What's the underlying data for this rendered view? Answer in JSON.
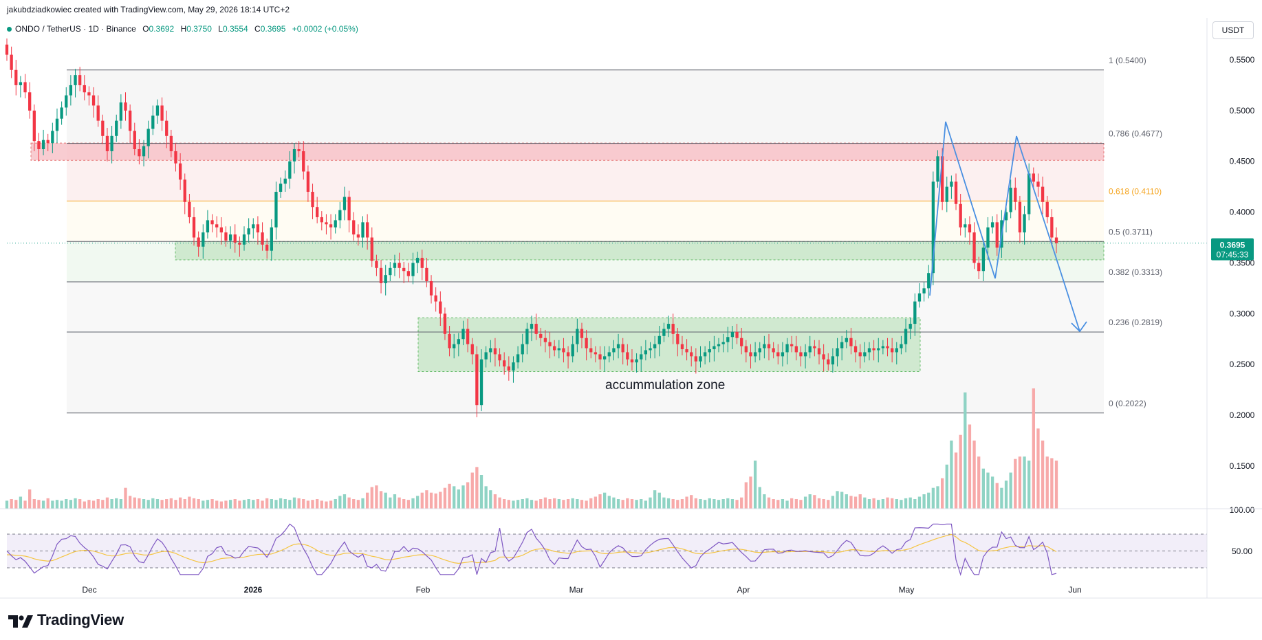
{
  "header": {
    "credit": "jakubdziadkowiec created with TradingView.com, May 29, 2026 18:14 UTC+2"
  },
  "legend": {
    "symbol": "ONDO / TetherUS · 1D · Binance",
    "open_label": "O",
    "open": "0.3692",
    "high_label": "H",
    "high": "0.3750",
    "low_label": "L",
    "low": "0.3554",
    "close_label": "C",
    "close": "0.3695",
    "change": "+0.0002 (+0.05%)"
  },
  "currency": "USDT",
  "price_tag": {
    "price": "0.3695",
    "countdown": "07:45:33"
  },
  "annotation": {
    "zone_text": "accummulation zone"
  },
  "branding": {
    "logo_text": "TradingView"
  },
  "colors": {
    "up": "#089981",
    "down": "#f23645",
    "fib_618": "#f5a623",
    "drawing": "#4a90e2",
    "resistance_zone": "#f7c3c9",
    "support_zone": "#c9e6c9",
    "rsi_line": "#7e57c2",
    "rsi_ma": "#f5c542"
  },
  "chart_data": {
    "type": "candlestick",
    "symbol": "ONDO / TetherUS",
    "interval": "1D",
    "y_axis": {
      "ticks": [
        "0.5500",
        "0.5000",
        "0.4500",
        "0.4000",
        "0.3500",
        "0.3000",
        "0.2500",
        "0.2000",
        "0.1500",
        "100.00",
        "50.00"
      ],
      "ylim": [
        0.135,
        0.58
      ]
    },
    "x_axis": {
      "ticks": [
        "Dec",
        "2026",
        "Feb",
        "Mar",
        "Apr",
        "May",
        "Jun"
      ]
    },
    "fibonacci": [
      {
        "level": "1",
        "price": "0.5400"
      },
      {
        "level": "0.786",
        "price": "0.4677"
      },
      {
        "level": "0.618",
        "price": "0.4110"
      },
      {
        "level": "0.5",
        "price": "0.3711"
      },
      {
        "level": "0.382",
        "price": "0.3313"
      },
      {
        "level": "0.236",
        "price": "0.2819"
      },
      {
        "level": "0",
        "price": "0.2022"
      }
    ],
    "zones": [
      {
        "type": "resistance",
        "from": 0.451,
        "to": 0.468
      },
      {
        "type": "support",
        "from": 0.353,
        "to": 0.371
      },
      {
        "type": "accumulation",
        "from": 0.243,
        "to": 0.296
      }
    ],
    "close_series": [
      0.555,
      0.54,
      0.525,
      0.528,
      0.518,
      0.5,
      0.47,
      0.462,
      0.471,
      0.468,
      0.48,
      0.492,
      0.503,
      0.515,
      0.525,
      0.535,
      0.525,
      0.518,
      0.515,
      0.505,
      0.49,
      0.475,
      0.46,
      0.475,
      0.49,
      0.508,
      0.5,
      0.48,
      0.462,
      0.455,
      0.465,
      0.482,
      0.495,
      0.505,
      0.49,
      0.475,
      0.46,
      0.448,
      0.432,
      0.41,
      0.395,
      0.375,
      0.366,
      0.38,
      0.392,
      0.388,
      0.385,
      0.38,
      0.372,
      0.378,
      0.37,
      0.368,
      0.378,
      0.384,
      0.388,
      0.38,
      0.368,
      0.362,
      0.385,
      0.42,
      0.428,
      0.433,
      0.45,
      0.462,
      0.46,
      0.44,
      0.42,
      0.405,
      0.395,
      0.39,
      0.388,
      0.385,
      0.392,
      0.402,
      0.415,
      0.392,
      0.378,
      0.375,
      0.39,
      0.375,
      0.352,
      0.345,
      0.33,
      0.338,
      0.345,
      0.35,
      0.345,
      0.342,
      0.337,
      0.35,
      0.355,
      0.345,
      0.332,
      0.318,
      0.312,
      0.3,
      0.28,
      0.266,
      0.27,
      0.275,
      0.285,
      0.27,
      0.26,
      0.21,
      0.255,
      0.262,
      0.266,
      0.26,
      0.254,
      0.248,
      0.244,
      0.252,
      0.26,
      0.27,
      0.285,
      0.29,
      0.28,
      0.276,
      0.272,
      0.268,
      0.264,
      0.266,
      0.262,
      0.258,
      0.27,
      0.285,
      0.276,
      0.266,
      0.262,
      0.26,
      0.255,
      0.258,
      0.262,
      0.266,
      0.27,
      0.262,
      0.255,
      0.252,
      0.255,
      0.26,
      0.264,
      0.266,
      0.27,
      0.278,
      0.285,
      0.29,
      0.28,
      0.27,
      0.265,
      0.262,
      0.258,
      0.253,
      0.258,
      0.262,
      0.265,
      0.268,
      0.27,
      0.272,
      0.277,
      0.282,
      0.276,
      0.268,
      0.262,
      0.258,
      0.262,
      0.266,
      0.27,
      0.266,
      0.262,
      0.258,
      0.262,
      0.27,
      0.268,
      0.262,
      0.258,
      0.262,
      0.268,
      0.266,
      0.26,
      0.255,
      0.25,
      0.258,
      0.266,
      0.272,
      0.276,
      0.268,
      0.262,
      0.258,
      0.262,
      0.266,
      0.264,
      0.266,
      0.268,
      0.266,
      0.262,
      0.266,
      0.27,
      0.285,
      0.29,
      0.312,
      0.32,
      0.325,
      0.34,
      0.43,
      0.455,
      0.41,
      0.425,
      0.43,
      0.408,
      0.385,
      0.388,
      0.38,
      0.35,
      0.342,
      0.365,
      0.385,
      0.39,
      0.365,
      0.392,
      0.4,
      0.424,
      0.41,
      0.38,
      0.398,
      0.438,
      0.43,
      0.425,
      0.41,
      0.395,
      0.375,
      0.3695
    ],
    "volume_series": [
      0.1,
      0.12,
      0.11,
      0.15,
      0.1,
      0.24,
      0.12,
      0.11,
      0.1,
      0.13,
      0.1,
      0.11,
      0.1,
      0.12,
      0.11,
      0.13,
      0.12,
      0.09,
      0.11,
      0.1,
      0.12,
      0.11,
      0.14,
      0.12,
      0.13,
      0.12,
      0.26,
      0.16,
      0.14,
      0.13,
      0.12,
      0.11,
      0.13,
      0.12,
      0.11,
      0.12,
      0.13,
      0.11,
      0.14,
      0.12,
      0.15,
      0.13,
      0.12,
      0.1,
      0.11,
      0.12,
      0.1,
      0.09,
      0.1,
      0.11,
      0.12,
      0.1,
      0.11,
      0.12,
      0.11,
      0.12,
      0.1,
      0.13,
      0.12,
      0.11,
      0.13,
      0.12,
      0.11,
      0.14,
      0.13,
      0.12,
      0.1,
      0.11,
      0.12,
      0.1,
      0.09,
      0.1,
      0.12,
      0.16,
      0.18,
      0.14,
      0.12,
      0.11,
      0.13,
      0.2,
      0.27,
      0.29,
      0.22,
      0.2,
      0.14,
      0.18,
      0.14,
      0.12,
      0.11,
      0.13,
      0.16,
      0.2,
      0.23,
      0.2,
      0.19,
      0.21,
      0.26,
      0.31,
      0.28,
      0.24,
      0.29,
      0.33,
      0.45,
      0.52,
      0.42,
      0.28,
      0.23,
      0.18,
      0.14,
      0.12,
      0.11,
      0.1,
      0.11,
      0.12,
      0.13,
      0.11,
      0.1,
      0.12,
      0.14,
      0.12,
      0.13,
      0.12,
      0.11,
      0.12,
      0.13,
      0.12,
      0.11,
      0.1,
      0.13,
      0.15,
      0.18,
      0.2,
      0.16,
      0.14,
      0.12,
      0.11,
      0.13,
      0.12,
      0.11,
      0.12,
      0.1,
      0.14,
      0.23,
      0.2,
      0.14,
      0.13,
      0.12,
      0.11,
      0.12,
      0.15,
      0.17,
      0.13,
      0.12,
      0.11,
      0.13,
      0.12,
      0.11,
      0.12,
      0.13,
      0.12,
      0.11,
      0.14,
      0.33,
      0.4,
      0.6,
      0.27,
      0.18,
      0.14,
      0.12,
      0.11,
      0.12,
      0.1,
      0.13,
      0.12,
      0.11,
      0.15,
      0.18,
      0.17,
      0.13,
      0.12,
      0.11,
      0.16,
      0.22,
      0.21,
      0.18,
      0.16,
      0.15,
      0.18,
      0.14,
      0.12,
      0.13,
      0.11,
      0.12,
      0.14,
      0.13,
      0.12,
      0.11,
      0.13,
      0.14,
      0.12,
      0.15,
      0.18,
      0.2,
      0.26,
      0.28,
      0.38,
      0.55,
      0.85,
      0.7,
      0.92,
      1.45,
      1.05,
      0.85,
      0.65,
      0.5,
      0.45,
      0.4,
      0.32,
      0.26,
      0.35,
      0.45,
      0.62,
      0.65,
      0.65,
      0.6,
      1.5,
      1.0,
      0.85,
      0.65,
      0.63,
      0.6,
      0.35,
      0.25
    ],
    "rsi": {
      "upper": 70,
      "mid": 50,
      "lower": 30
    },
    "annotation": "accummulation zone"
  }
}
